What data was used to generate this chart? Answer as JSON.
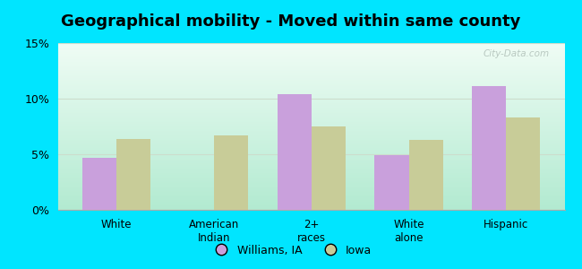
{
  "title": "Geographical mobility - Moved within same county",
  "categories": [
    "White",
    "American\nIndian",
    "2+\nraces",
    "White\nalone",
    "Hispanic"
  ],
  "williams_values": [
    4.7,
    0,
    10.4,
    4.9,
    11.1
  ],
  "iowa_values": [
    6.4,
    6.7,
    7.5,
    6.3,
    8.3
  ],
  "williams_color": "#c9a0dc",
  "iowa_color": "#c8cc98",
  "bar_width": 0.35,
  "ylim": [
    0,
    15
  ],
  "yticks": [
    0,
    5,
    10,
    15
  ],
  "yticklabels": [
    "0%",
    "5%",
    "10%",
    "15%"
  ],
  "bg_color_topleft": "#d0f0d8",
  "bg_color_topright": "#f0f8f0",
  "bg_color_bottomleft": "#a8e8c8",
  "bg_color_bottomright": "#e8f5e0",
  "outer_background": "#00e5ff",
  "title_fontsize": 13,
  "legend_label_williams": "Williams, IA",
  "legend_label_iowa": "Iowa",
  "watermark": "City-Data.com",
  "grid_color": "#ccddcc"
}
